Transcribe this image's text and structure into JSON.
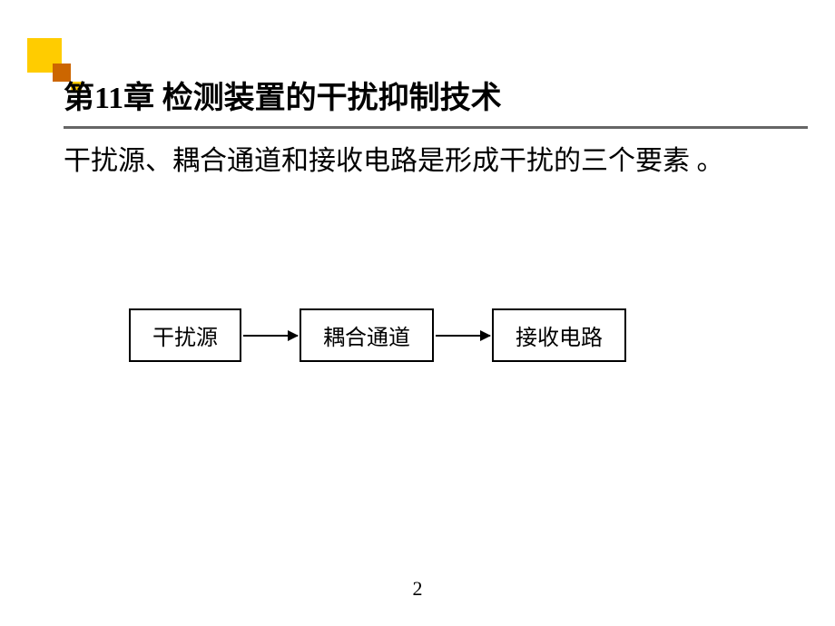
{
  "decoration": {
    "yellow_color": "#ffcc00",
    "orange_color": "#cc6600"
  },
  "title": {
    "prefix": "第",
    "chapter_number": "11",
    "suffix": "章  检测装置的干扰抑制技术"
  },
  "body_text": "干扰源、耦合通道和接收电路是形成干扰的三个要素 。",
  "flowchart": {
    "type": "flowchart",
    "nodes": [
      {
        "label": "干扰源"
      },
      {
        "label": "耦合通道"
      },
      {
        "label": "接收电路"
      }
    ],
    "node_border_color": "#000000",
    "node_bg_color": "#ffffff",
    "arrow_color": "#000000",
    "font_size": 24
  },
  "page_number": "2",
  "colors": {
    "background": "#ffffff",
    "text": "#000000",
    "underline": "#666666"
  }
}
